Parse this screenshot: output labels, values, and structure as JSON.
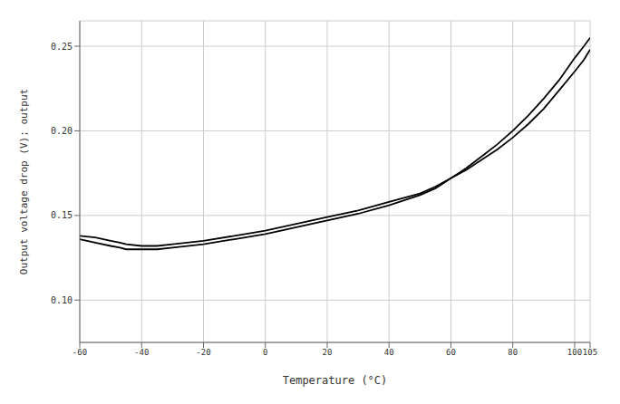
{
  "chart_data": {
    "type": "line",
    "xlabel": "Temperature (°C)",
    "ylabel": "Output voltage drop (V); output",
    "x": [
      -60,
      -55,
      -50,
      -47,
      -45,
      -40,
      -35,
      -30,
      -20,
      -10,
      0,
      10,
      20,
      30,
      40,
      50,
      55,
      60,
      65,
      70,
      75,
      80,
      85,
      90,
      95,
      100,
      103,
      105
    ],
    "series": [
      {
        "color": "#000000",
        "values": [
          0.136,
          0.134,
          0.132,
          0.131,
          0.13,
          0.13,
          0.13,
          0.131,
          0.133,
          0.136,
          0.139,
          0.143,
          0.147,
          0.151,
          0.156,
          0.162,
          0.166,
          0.172,
          0.178,
          0.185,
          0.192,
          0.2,
          0.209,
          0.219,
          0.23,
          0.243,
          0.25,
          0.255
        ]
      },
      {
        "color": "#000000",
        "values": [
          0.138,
          0.137,
          0.135,
          0.134,
          0.133,
          0.132,
          0.132,
          0.133,
          0.135,
          0.138,
          0.141,
          0.145,
          0.149,
          0.153,
          0.158,
          0.163,
          0.167,
          0.172,
          0.177,
          0.183,
          0.189,
          0.196,
          0.204,
          0.213,
          0.224,
          0.235,
          0.242,
          0.248
        ]
      }
    ],
    "xlim": [
      -60,
      105
    ],
    "ylim": [
      0.075,
      0.265
    ],
    "xticks": [
      -60,
      -40,
      -20,
      0,
      20,
      40,
      60,
      80,
      100,
      105
    ],
    "yticks": [
      {
        "value": 0.1,
        "label": "0.10"
      },
      {
        "value": 0.15,
        "label": "0.15"
      },
      {
        "value": 0.2,
        "label": "0.20"
      },
      {
        "value": 0.25,
        "label": "0.25"
      }
    ],
    "grid": true
  }
}
